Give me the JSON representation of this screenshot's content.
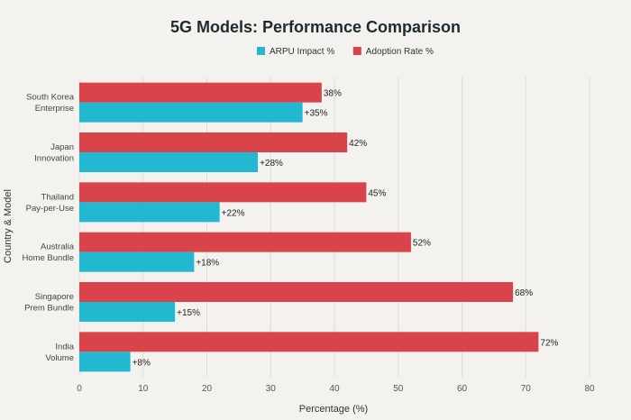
{
  "chart_data": {
    "type": "bar",
    "orientation": "horizontal",
    "title": "5G Models: Performance Comparison",
    "xlabel": "Percentage (%)",
    "ylabel": "Country & Model",
    "xlim": [
      0,
      80
    ],
    "xticks": [
      "0",
      "10",
      "20",
      "30",
      "40",
      "50",
      "60",
      "70",
      "80"
    ],
    "grid": true,
    "legend_position": "top-center",
    "categories": [
      [
        "South Korea",
        "Enterprise"
      ],
      [
        "Japan",
        "Innovation"
      ],
      [
        "Thailand",
        "Pay-per-Use"
      ],
      [
        "Australia",
        "Home Bundle"
      ],
      [
        "Singapore",
        "Prem Bundle"
      ],
      [
        "India",
        "Volume"
      ]
    ],
    "series": [
      {
        "name": "Adoption Rate %",
        "color": "#d9434a",
        "values": [
          38,
          42,
          45,
          52,
          68,
          72
        ],
        "labels": [
          "38%",
          "42%",
          "45%",
          "52%",
          "68%",
          "72%"
        ]
      },
      {
        "name": "ARPU Impact %",
        "color": "#22b8cf",
        "values": [
          35,
          28,
          22,
          18,
          15,
          8
        ],
        "labels": [
          "+35%",
          "+28%",
          "+22%",
          "+18%",
          "+15%",
          "+8%"
        ]
      }
    ],
    "legend_order": [
      "ARPU Impact %",
      "Adoption Rate %"
    ]
  }
}
